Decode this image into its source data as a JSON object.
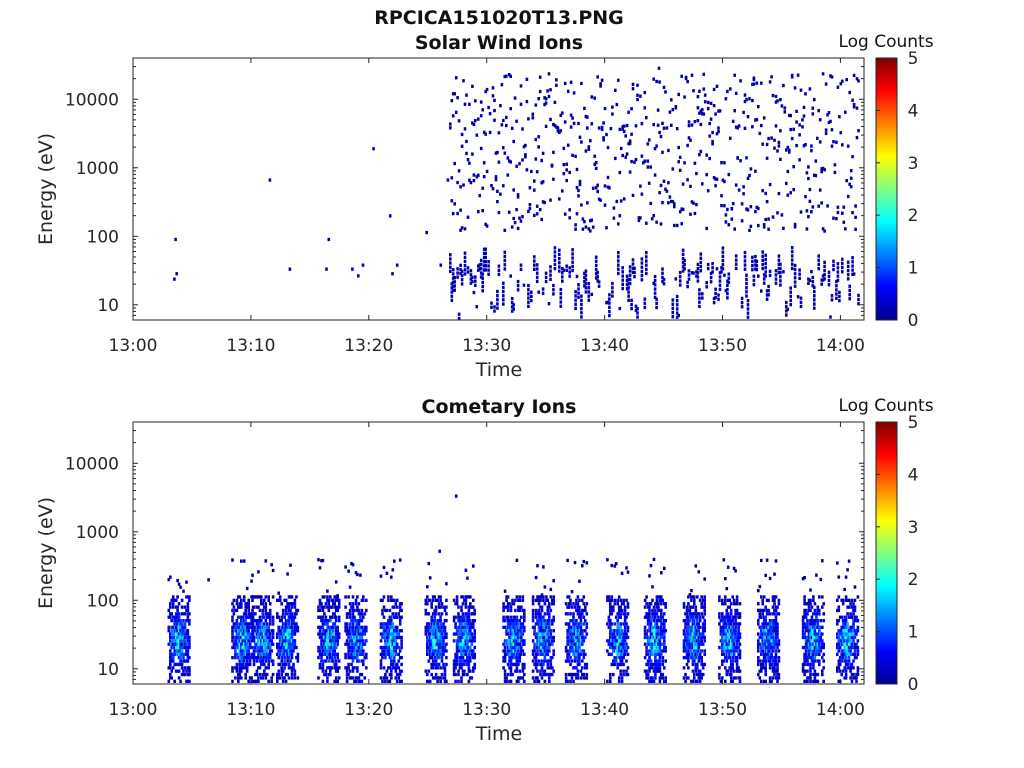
{
  "figure": {
    "filename": "RPCICA151020T13.PNG"
  },
  "colormap": "jet",
  "chart_data": [
    {
      "type": "heatmap",
      "title": "Solar Wind Ions",
      "xlabel": "Time",
      "ylabel": "Energy (eV)",
      "x_ticks": [
        "13:00",
        "13:10",
        "13:20",
        "13:30",
        "13:40",
        "13:50",
        "14:00"
      ],
      "x_tick_minutes": [
        0,
        10,
        20,
        30,
        40,
        50,
        60
      ],
      "xlim_minutes": [
        0,
        62
      ],
      "y_ticks": [
        "10",
        "100",
        "1000",
        "10000"
      ],
      "y_tick_values": [
        10,
        100,
        1000,
        10000
      ],
      "ylim": [
        6,
        40000
      ],
      "y_scale": "log",
      "colorbar": {
        "label": "Log Counts",
        "ticks": [
          "0",
          "1",
          "2",
          "3",
          "4",
          "5"
        ],
        "range": [
          0,
          5
        ]
      },
      "pixels": [
        {
          "t": 3.5,
          "e": 95,
          "v": 0.2
        },
        {
          "t": 3.4,
          "e": 25,
          "v": 0.2
        },
        {
          "t": 3.6,
          "e": 30,
          "v": 0.2
        },
        {
          "t": 11.5,
          "e": 700,
          "v": 0.2
        },
        {
          "t": 13.2,
          "e": 35,
          "v": 0.2
        },
        {
          "t": 16.5,
          "e": 95,
          "v": 0.2
        },
        {
          "t": 16.3,
          "e": 35,
          "v": 0.2
        },
        {
          "t": 18.5,
          "e": 35,
          "v": 0.3
        },
        {
          "t": 19.0,
          "e": 28,
          "v": 0.3
        },
        {
          "t": 19.4,
          "e": 40,
          "v": 0.3
        },
        {
          "t": 20.3,
          "e": 2000,
          "v": 0.2
        },
        {
          "t": 21.7,
          "e": 210,
          "v": 0.2
        },
        {
          "t": 21.9,
          "e": 30,
          "v": 0.3
        },
        {
          "t": 22.3,
          "e": 40,
          "v": 0.3
        },
        {
          "t": 24.8,
          "e": 120,
          "v": 0.2
        },
        {
          "t": 26.0,
          "e": 40,
          "v": 0.2
        },
        {
          "t": 26.6,
          "e": 700,
          "v": 0.2
        },
        {
          "t": 44.5,
          "e": 30000,
          "v": 0.2
        }
      ]
    },
    {
      "type": "heatmap",
      "title": "Cometary Ions",
      "xlabel": "Time",
      "ylabel": "Energy (eV)",
      "x_ticks": [
        "13:00",
        "13:10",
        "13:20",
        "13:30",
        "13:40",
        "13:50",
        "14:00"
      ],
      "x_tick_minutes": [
        0,
        10,
        20,
        30,
        40,
        50,
        60
      ],
      "xlim_minutes": [
        0,
        62
      ],
      "y_ticks": [
        "10",
        "100",
        "1000",
        "10000"
      ],
      "y_tick_values": [
        10,
        100,
        1000,
        10000
      ],
      "ylim": [
        6,
        40000
      ],
      "y_scale": "log",
      "colorbar": {
        "label": "Log Counts",
        "ticks": [
          "0",
          "1",
          "2",
          "3",
          "4",
          "5"
        ],
        "range": [
          0,
          5
        ]
      },
      "pixels": [
        {
          "t": 27.3,
          "e": 3500,
          "v": 0.2
        },
        {
          "t": 6.3,
          "e": 210,
          "v": 0.2
        },
        {
          "t": 25.9,
          "e": 550,
          "v": 0.2
        }
      ]
    }
  ]
}
